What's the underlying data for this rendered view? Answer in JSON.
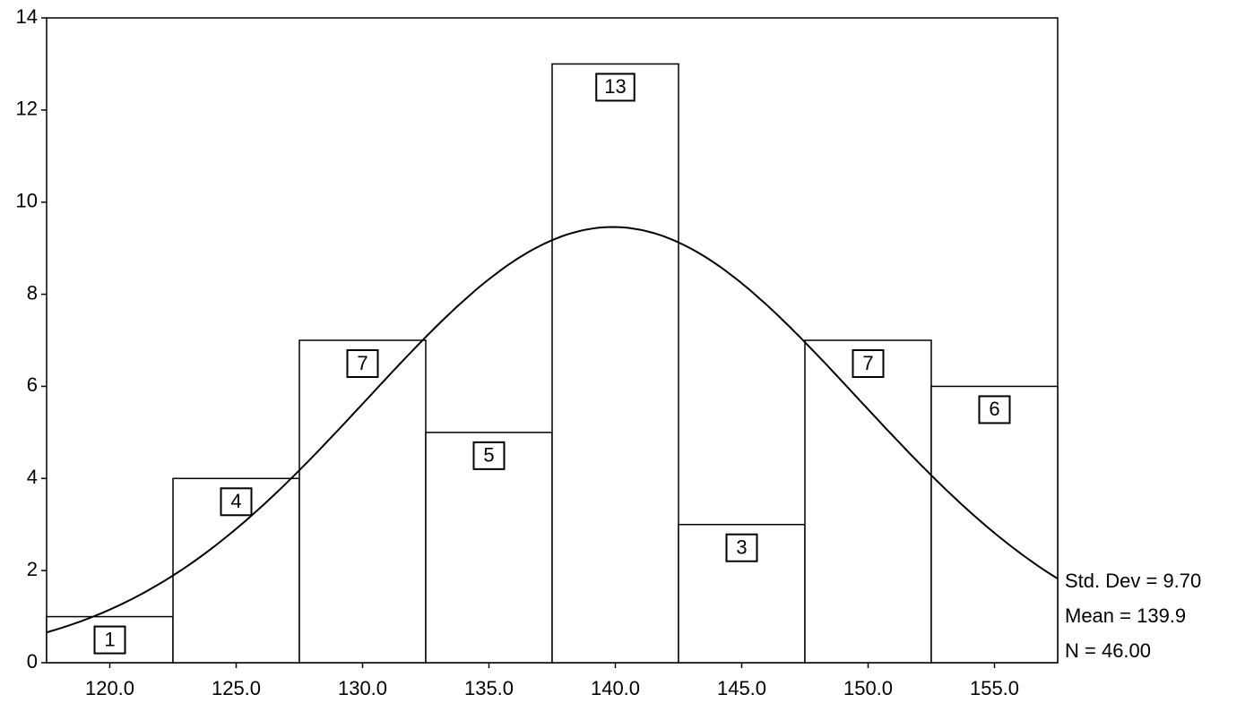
{
  "chart_data": {
    "type": "histogram",
    "bins": [
      117.5,
      122.5,
      127.5,
      132.5,
      137.5,
      142.5,
      147.5,
      152.5,
      157.5
    ],
    "values": [
      1,
      4,
      7,
      5,
      13,
      3,
      7,
      6
    ],
    "color": "#ffffff",
    "xlim": [
      117.5,
      157.5
    ],
    "xticks": [
      {
        "value": 120,
        "label": "120.0"
      },
      {
        "value": 125,
        "label": "125.0"
      },
      {
        "value": 130,
        "label": "130.0"
      },
      {
        "value": 135,
        "label": "135.0"
      },
      {
        "value": 140,
        "label": "140.0"
      },
      {
        "value": 145,
        "label": "145.0"
      },
      {
        "value": 150,
        "label": "150.0"
      },
      {
        "value": 155,
        "label": "155.0"
      }
    ],
    "ylim": [
      0,
      14
    ],
    "yticks": [
      0,
      2,
      4,
      6,
      8,
      10,
      12,
      14
    ],
    "stats": [
      {
        "label": "Std. Dev = 9.70",
        "value": 9.7
      },
      {
        "label": "Mean = 139.9",
        "value": 139.9
      },
      {
        "label": "N = 46.00",
        "value": 46
      }
    ]
  }
}
